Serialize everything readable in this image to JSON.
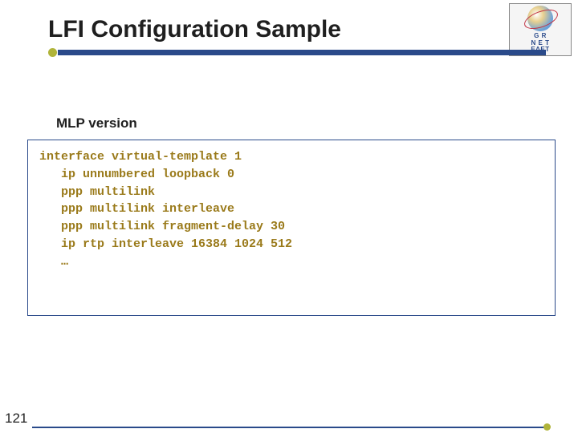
{
  "title": "LFI Configuration Sample",
  "section_label": "MLP version",
  "code_lines": [
    "interface virtual-template 1",
    "   ip unnumbered loopback 0",
    "   ppp multilink",
    "   ppp multilink interleave",
    "   ppp multilink fragment-delay 30",
    "   ip rtp interleave 16384 1024 512",
    "   …"
  ],
  "page_number": "121",
  "logo": {
    "line1": "G R",
    "line2": "N E T",
    "line3": "ΕΔΕΤ"
  },
  "colors": {
    "accent_bar": "#2a4a8a",
    "accent_dot": "#b0b43a",
    "code_text": "#9a7a1a",
    "box_border": "#2a4a8a"
  }
}
